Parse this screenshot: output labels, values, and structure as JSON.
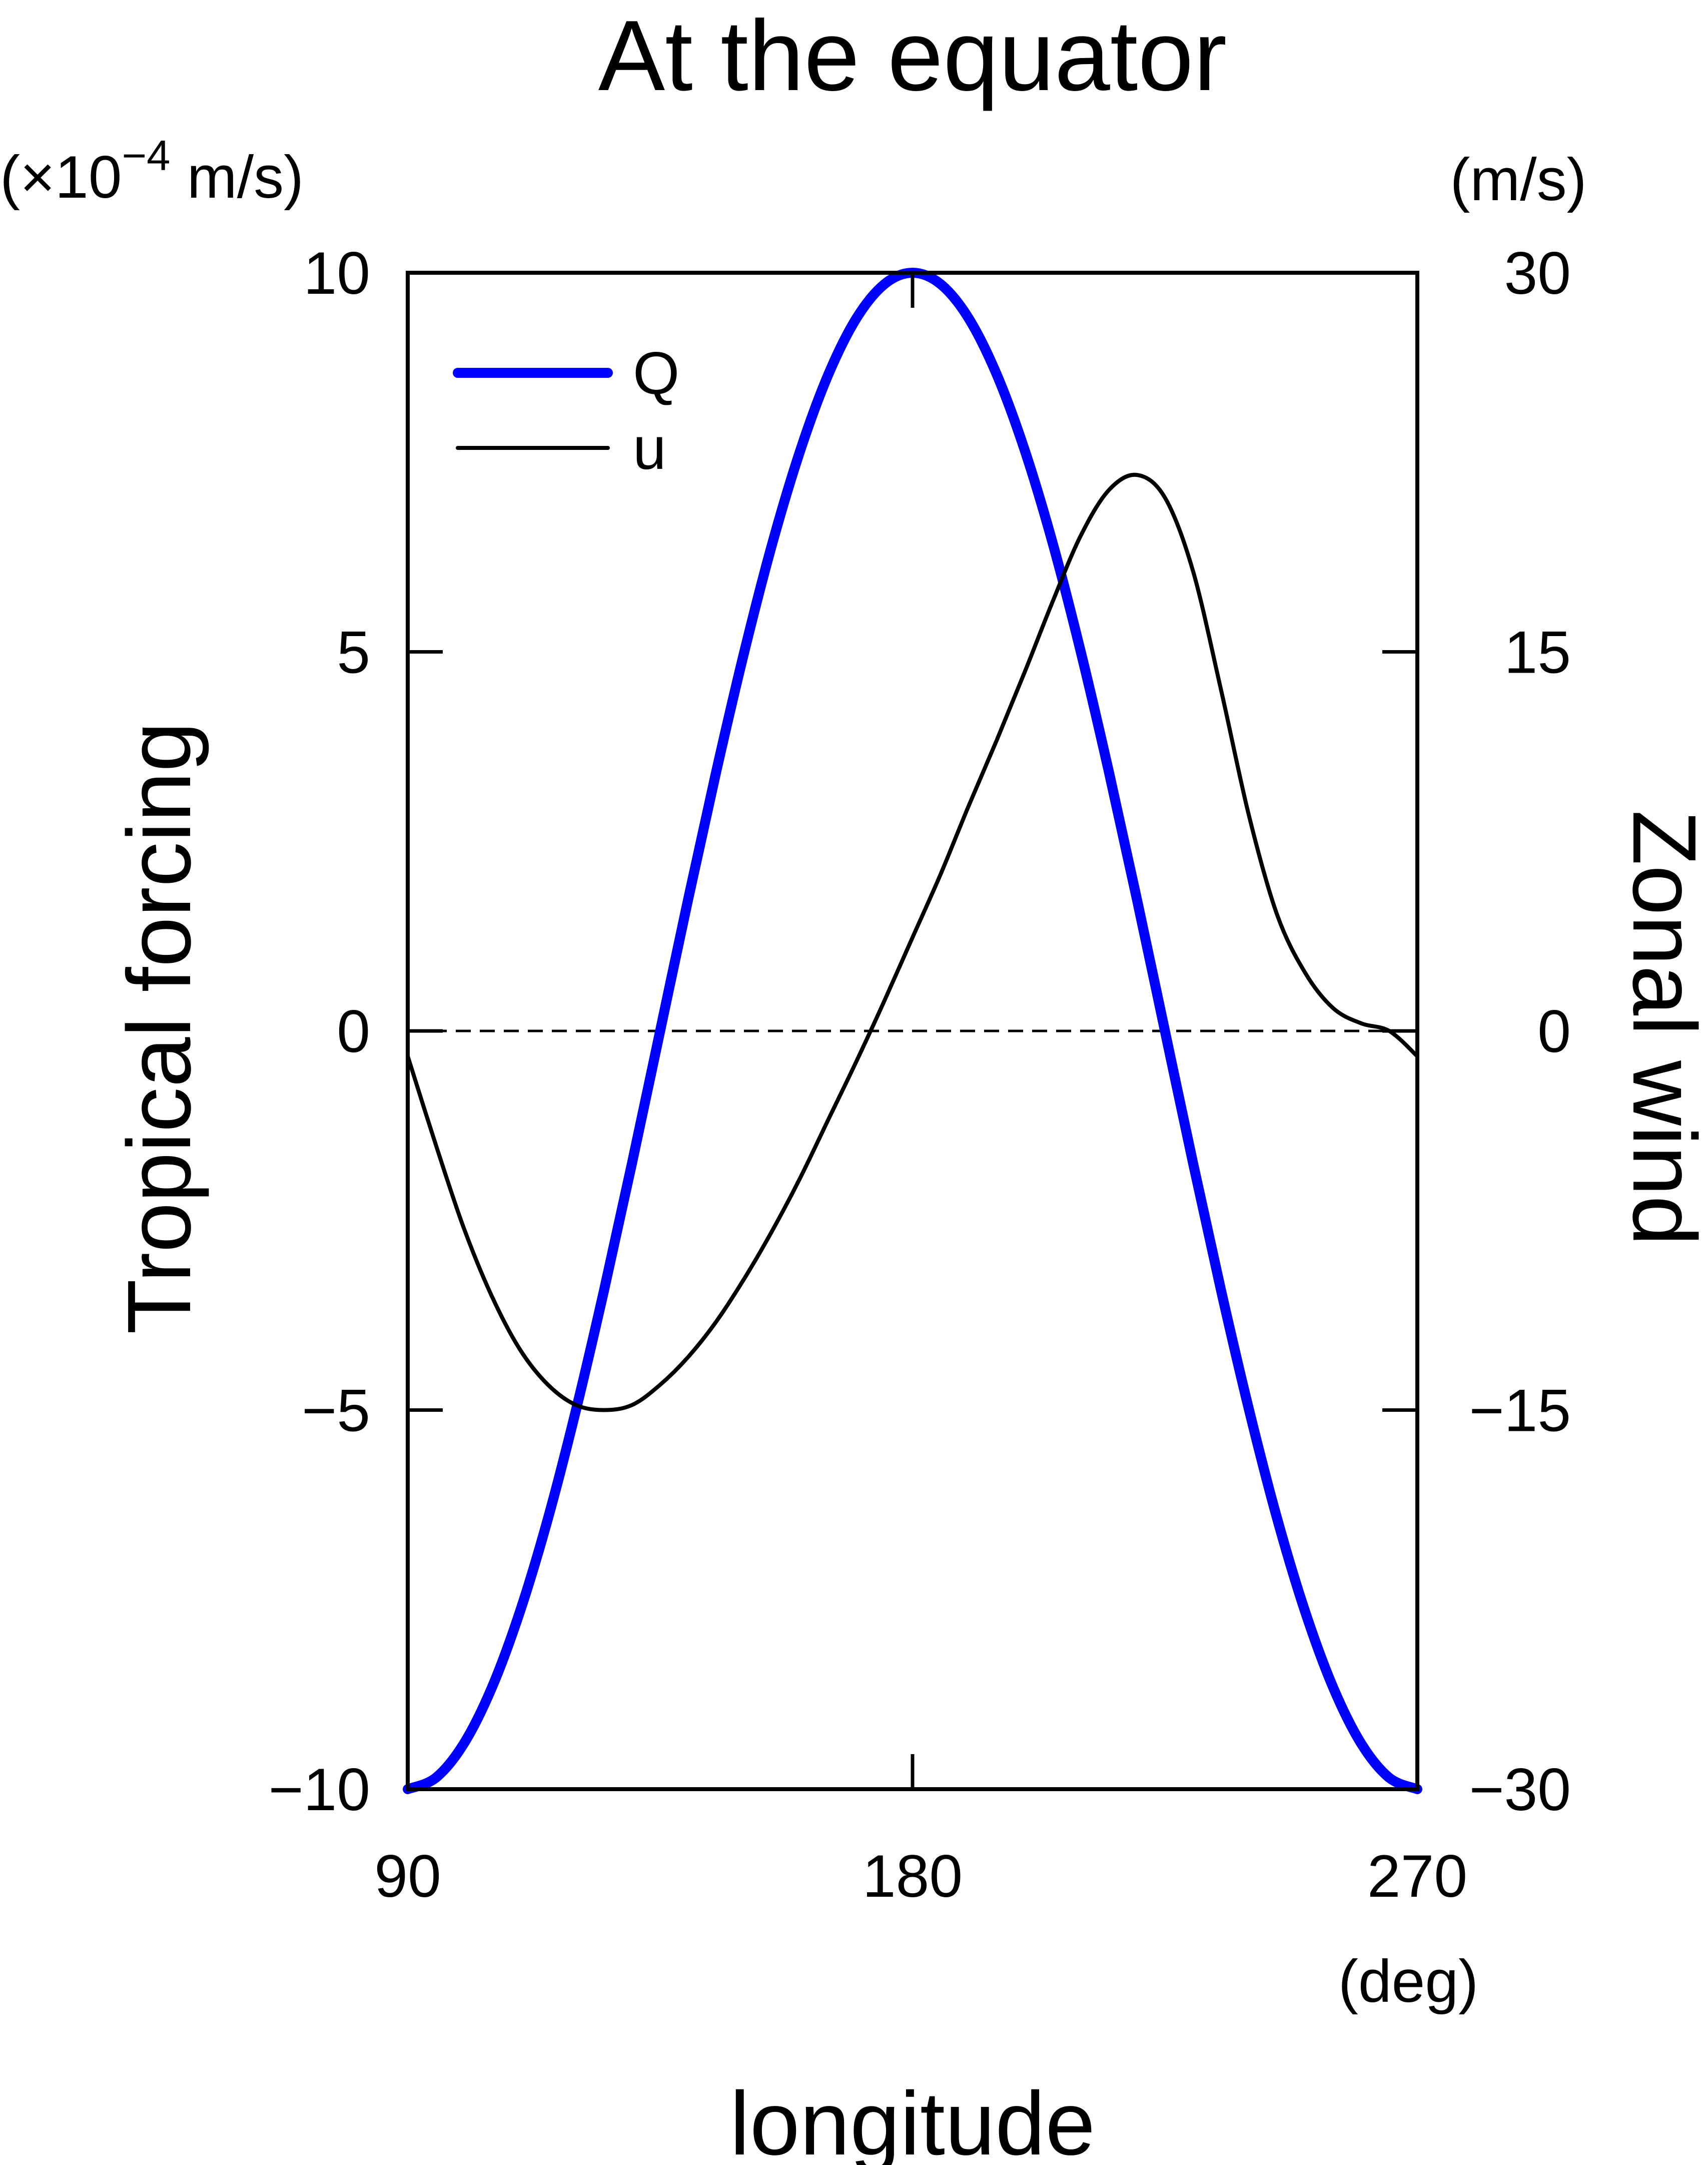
{
  "chart_data": {
    "type": "line",
    "title": "At the equator",
    "xlabel": "longitude",
    "x_unit": "(deg)",
    "xlim": [
      90,
      270
    ],
    "x_ticks": [
      "90",
      "180",
      "270"
    ],
    "y_left": {
      "label": "Tropical forcing",
      "unit": "(×10",
      "unit_exp": "−4",
      "unit_tail": " m/s)",
      "lim": [
        -10,
        10
      ],
      "ticks": [
        "−10",
        "−5",
        "0",
        "5",
        "10"
      ]
    },
    "y_right": {
      "label": "Zonal wind",
      "unit": "(m/s)",
      "lim": [
        -30,
        30
      ],
      "ticks": [
        "−30",
        "−15",
        "0",
        "15",
        "30"
      ]
    },
    "zero_line": "dashed",
    "grid": false,
    "legend": {
      "placement": "top-left"
    },
    "series": [
      {
        "name": "Q",
        "axis": "left",
        "color": "#0000ff",
        "x": [
          90,
          95,
          100,
          105,
          110,
          115,
          120,
          125,
          130,
          135,
          140,
          145,
          150,
          155,
          160,
          165,
          170,
          175,
          180,
          185,
          190,
          195,
          200,
          205,
          210,
          215,
          220,
          225,
          230,
          235,
          240,
          245,
          250,
          255,
          260,
          265,
          270
        ],
        "y": [
          -10.0,
          -9.85,
          -9.4,
          -8.66,
          -7.66,
          -6.43,
          -5.0,
          -3.42,
          -1.74,
          0.0,
          1.74,
          3.42,
          5.0,
          6.43,
          7.66,
          8.66,
          9.4,
          9.85,
          10.0,
          9.85,
          9.4,
          8.66,
          7.66,
          6.43,
          5.0,
          3.42,
          1.74,
          0.0,
          -1.74,
          -3.42,
          -5.0,
          -6.43,
          -7.66,
          -8.66,
          -9.4,
          -9.85,
          -10.0
        ]
      },
      {
        "name": "u",
        "axis": "right",
        "color": "#000000",
        "x": [
          90,
          95,
          100,
          105,
          110,
          115,
          120,
          125,
          130,
          135,
          140,
          145,
          150,
          155,
          160,
          165,
          170,
          175,
          180,
          185,
          190,
          195,
          200,
          205,
          210,
          215,
          220,
          225,
          230,
          235,
          240,
          245,
          250,
          255,
          260,
          265,
          270
        ],
        "y": [
          -1.0,
          -4.5,
          -7.8,
          -10.5,
          -12.6,
          -14.0,
          -14.8,
          -15.0,
          -14.8,
          -14.0,
          -12.9,
          -11.5,
          -9.8,
          -7.9,
          -5.8,
          -3.5,
          -1.2,
          1.2,
          3.7,
          6.2,
          8.9,
          11.5,
          14.2,
          17.0,
          19.6,
          21.4,
          22.0,
          21.1,
          18.2,
          13.5,
          8.5,
          4.6,
          2.3,
          0.9,
          0.3,
          0.0,
          -1.0
        ]
      }
    ]
  }
}
